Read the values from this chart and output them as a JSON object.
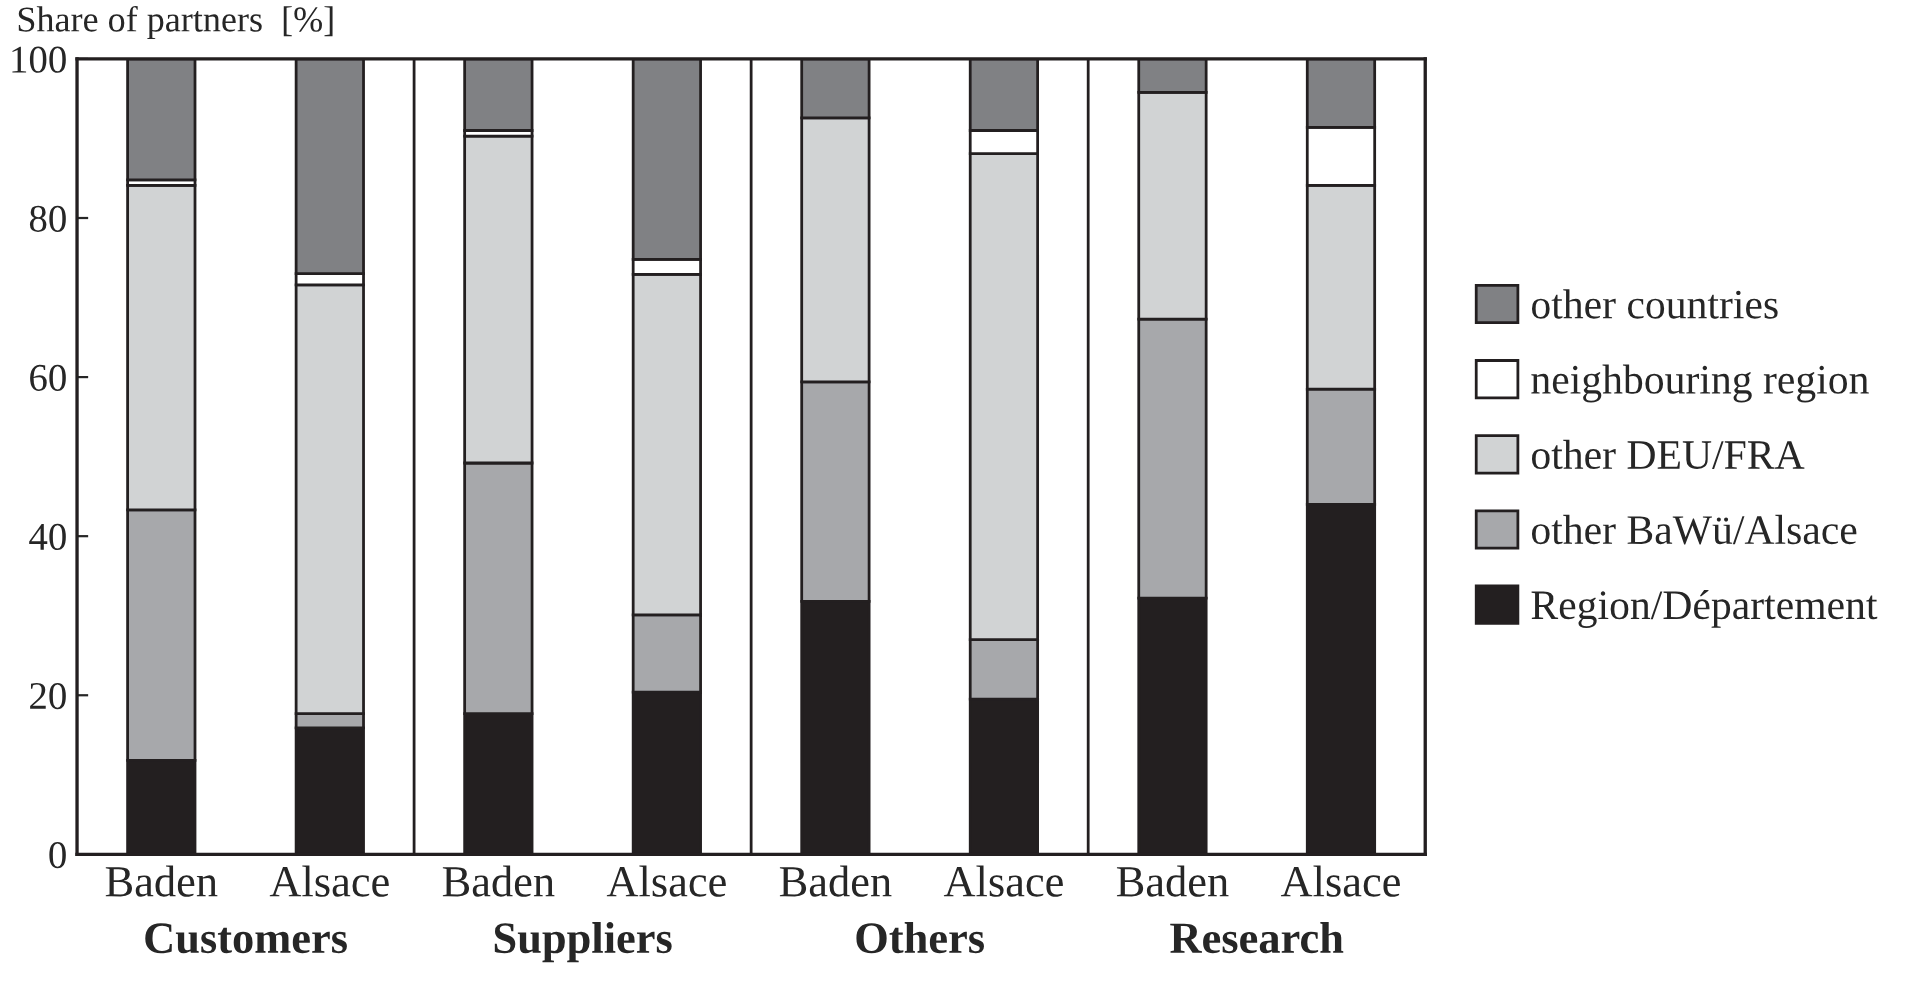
{
  "chart_data": {
    "type": "bar",
    "stacked": true,
    "ylabel": "Share of partners  [%]",
    "categories": [
      "Baden",
      "Alsace",
      "Baden",
      "Alsace",
      "Baden",
      "Alsace",
      "Baden",
      "Alsace"
    ],
    "series": [
      {
        "name": "Region/Département",
        "color": "#231f20",
        "values": [
          11.8,
          15.9,
          17.7,
          20.4,
          31.8,
          19.5,
          32.2,
          44.0
        ]
      },
      {
        "name": "other BaWü/Alsace",
        "color": "#a7a8ab",
        "values": [
          31.5,
          1.8,
          31.5,
          9.7,
          27.6,
          7.5,
          35.1,
          14.5
        ]
      },
      {
        "name": "other DEU/FRA",
        "color": "#d1d3d4",
        "values": [
          40.8,
          53.9,
          41.1,
          42.8,
          33.2,
          61.1,
          28.5,
          25.6
        ]
      },
      {
        "name": "neighbouring region",
        "color": "#ffffff",
        "values": [
          0.7,
          1.4,
          0.7,
          1.9,
          null,
          2.9,
          0,
          7.3
        ]
      },
      {
        "name": "other countries",
        "color": "#808184",
        "values": [
          15.2,
          27.0,
          9.0,
          25.2,
          7.4,
          9.0,
          4.2,
          8.6
        ]
      }
    ],
    "annotations": [
      "Customers",
      "Suppliers",
      "Others",
      "Research"
    ],
    "ylim": [
      0,
      100
    ],
    "yticks": [
      0,
      20,
      40,
      60,
      80,
      100
    ],
    "grid": false,
    "legend": "right"
  }
}
